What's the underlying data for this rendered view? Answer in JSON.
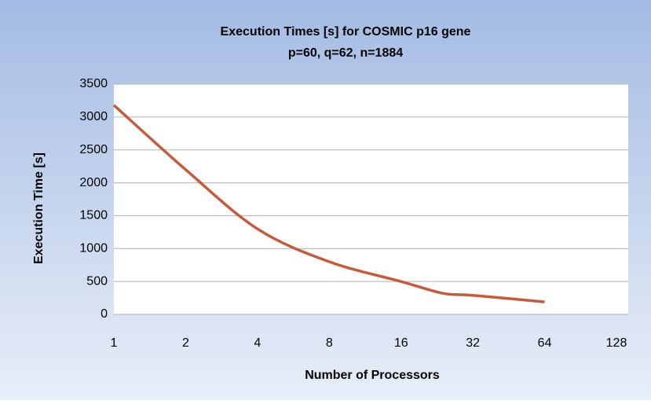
{
  "chart_data": {
    "type": "line",
    "title": "Execution Times [s] for COSMIC p16 gene",
    "subtitle": "p=60, q=62, n=1884",
    "xlabel": "Number of Processors",
    "ylabel": "Execution Time   [s]",
    "x": [
      1,
      2,
      4,
      8,
      16,
      24,
      32,
      64
    ],
    "values": [
      3180,
      2200,
      1300,
      800,
      500,
      320,
      290,
      190
    ],
    "color": "#c65b3b",
    "xscale": "log2",
    "xlim": [
      1,
      128
    ],
    "xticks": [
      1,
      2,
      4,
      8,
      16,
      32,
      64,
      128
    ],
    "ylim": [
      0,
      3500
    ],
    "yticks": [
      0,
      500,
      1000,
      1500,
      2000,
      2500,
      3000,
      3500
    ],
    "grid": true
  }
}
